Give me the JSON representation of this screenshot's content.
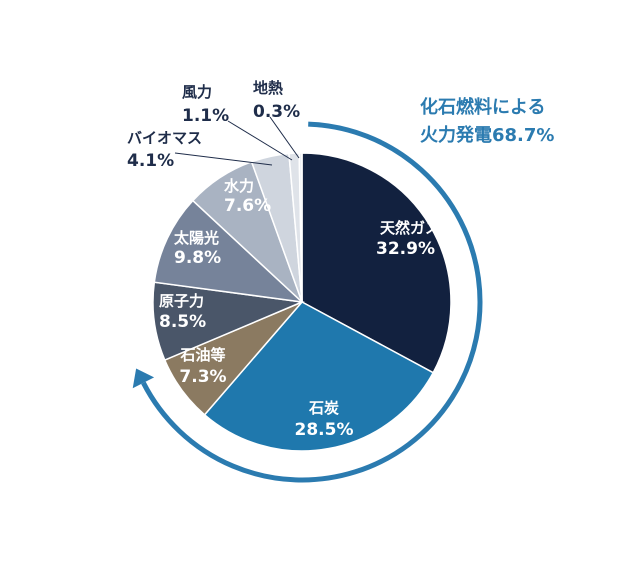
{
  "chart_data": {
    "type": "pie",
    "start_angle_deg": 0,
    "direction": "clockwise",
    "slices": [
      {
        "label": "天然ガス",
        "value": 32.9,
        "value_label": "32.9%",
        "color": "#12213f",
        "label_placement": "inside"
      },
      {
        "label": "石炭",
        "value": 28.5,
        "value_label": "28.5%",
        "color": "#1f78ad",
        "label_placement": "inside"
      },
      {
        "label": "石油等",
        "value": 7.3,
        "value_label": "7.3%",
        "color": "#8b7a61",
        "label_placement": "inside"
      },
      {
        "label": "原子力",
        "value": 8.5,
        "value_label": "8.5%",
        "color": "#4a5669",
        "label_placement": "inside"
      },
      {
        "label": "太陽光",
        "value": 9.8,
        "value_label": "9.8%",
        "color": "#76839a",
        "label_placement": "inside"
      },
      {
        "label": "水力",
        "value": 7.6,
        "value_label": "7.6%",
        "color": "#a9b3c2",
        "label_placement": "inside"
      },
      {
        "label": "バイオマス",
        "value": 4.1,
        "value_label": "4.1%",
        "color": "#cfd5de",
        "label_placement": "outside"
      },
      {
        "label": "風力",
        "value": 1.1,
        "value_label": "1.1%",
        "color": "#dfe3e9",
        "label_placement": "outside"
      },
      {
        "label": "地熱",
        "value": 0.3,
        "value_label": "0.3%",
        "color": "#eceff3",
        "label_placement": "outside"
      }
    ],
    "annotation": {
      "line1": "化石燃料による",
      "line2": "火力発電68.7%",
      "color": "#2b7bb0"
    },
    "arrow_color": "#2b7bb0"
  }
}
